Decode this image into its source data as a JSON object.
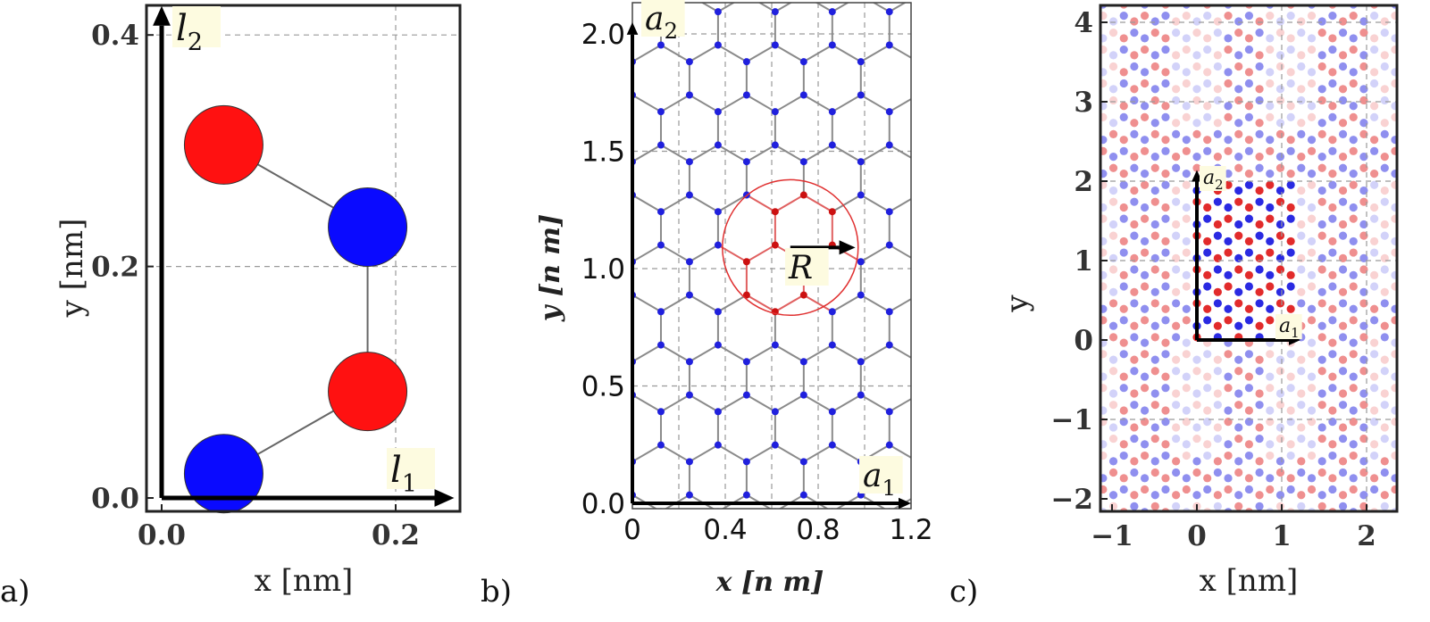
{
  "chart_data": [
    {
      "panel": "a)",
      "type": "scatter",
      "xlabel": "x [nm]",
      "ylabel": "y [nm]",
      "xlim": [
        -0.01,
        0.26
      ],
      "ylim": [
        -0.005,
        0.425
      ],
      "xticks": [
        "0.0",
        "0.2"
      ],
      "yticks": [
        "0.0",
        "0.2",
        "0.4"
      ],
      "grid": true,
      "atoms": [
        {
          "x": 0.053,
          "y": 0.021,
          "color": "blue"
        },
        {
          "x": 0.176,
          "y": 0.092,
          "color": "red"
        },
        {
          "x": 0.176,
          "y": 0.234,
          "color": "blue"
        },
        {
          "x": 0.053,
          "y": 0.305,
          "color": "red"
        }
      ],
      "vectors": [
        {
          "label": "l",
          "sub": "1",
          "to": [
            0.25,
            0
          ]
        },
        {
          "label": "l",
          "sub": "2",
          "to": [
            0,
            0.425
          ]
        }
      ]
    },
    {
      "panel": "b)",
      "type": "scatter",
      "xlabel": "x [n m]",
      "ylabel": "y [n m]",
      "xlim": [
        0,
        1.2
      ],
      "ylim": [
        0,
        2.05
      ],
      "xticks": [
        "0",
        "0.4",
        "0.8",
        "1.2"
      ],
      "yticks": [
        "0.0",
        "0.5",
        "1.0",
        "1.5",
        "2.0"
      ],
      "grid": true,
      "lattice": "honeycomb",
      "bond_length_nm": 0.142,
      "circle": {
        "cx": 0.68,
        "cy": 1.09,
        "r": 0.29
      },
      "vectors": [
        {
          "label": "a",
          "sub": "1",
          "to": [
            1.2,
            0
          ]
        },
        {
          "label": "a",
          "sub": "2",
          "to": [
            0,
            2.05
          ]
        },
        {
          "label": "R",
          "sub": "",
          "from": [
            0.68,
            1.09
          ],
          "to": [
            0.96,
            1.09
          ]
        }
      ]
    },
    {
      "panel": "c)",
      "type": "scatter",
      "xlabel": "x [nm]",
      "ylabel": "y",
      "xlim": [
        -1.2,
        2.5
      ],
      "ylim": [
        -2.05,
        4.25
      ],
      "xticks": [
        "−1",
        "0",
        "1",
        "2"
      ],
      "yticks": [
        "−2",
        "−1",
        "0",
        "1",
        "2",
        "3",
        "4"
      ],
      "grid": true,
      "lattice": "honeycomb",
      "supercell": {
        "x": [
          0,
          1.2
        ],
        "y": [
          0,
          2.05
        ]
      },
      "vectors": [
        {
          "label": "a",
          "sub": "1",
          "to": [
            1.2,
            0
          ]
        },
        {
          "label": "a",
          "sub": "2",
          "to": [
            0,
            2.05
          ]
        }
      ]
    }
  ]
}
